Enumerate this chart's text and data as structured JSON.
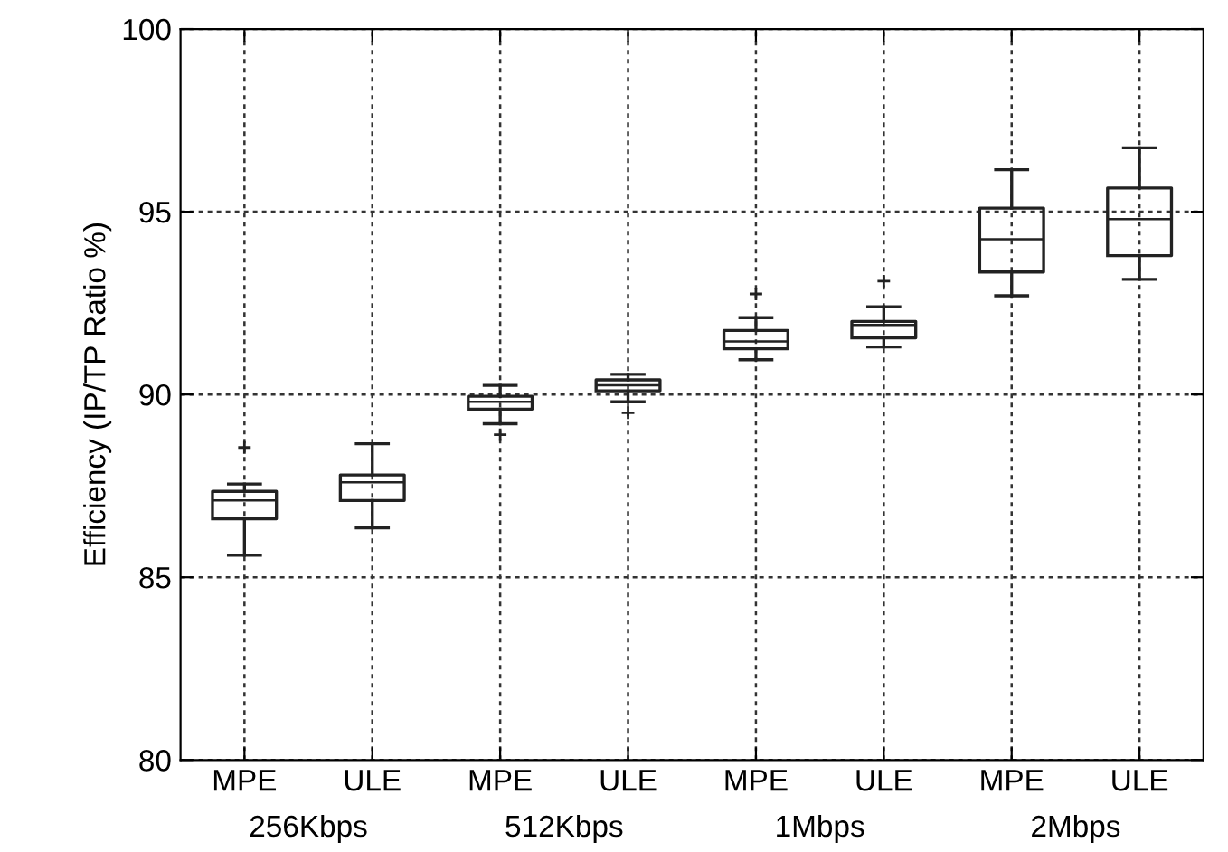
{
  "chart_data": {
    "type": "box",
    "ylabel": "Efficiency (IP/TP Ratio %)",
    "categories": [
      "MPE",
      "ULE",
      "MPE",
      "ULE",
      "MPE",
      "ULE",
      "MPE",
      "ULE"
    ],
    "boxes": [
      {
        "low": 85.6,
        "q1": 86.6,
        "median": 87.1,
        "q3": 87.35,
        "high": 87.55,
        "outliers": [
          88.55
        ]
      },
      {
        "low": 86.35,
        "q1": 87.1,
        "median": 87.6,
        "q3": 87.8,
        "high": 88.65
      },
      {
        "low": 89.2,
        "q1": 89.6,
        "median": 89.8,
        "q3": 89.95,
        "high": 90.25,
        "outliers": [
          88.9
        ]
      },
      {
        "low": 89.8,
        "q1": 90.1,
        "median": 90.25,
        "q3": 90.4,
        "high": 90.55,
        "outliers": [
          89.5
        ]
      },
      {
        "low": 90.95,
        "q1": 91.25,
        "median": 91.45,
        "q3": 91.75,
        "high": 92.1,
        "outliers": [
          92.75
        ]
      },
      {
        "low": 91.3,
        "q1": 91.55,
        "median": 91.9,
        "q3": 92.0,
        "high": 92.4,
        "outliers": [
          93.1
        ]
      },
      {
        "low": 92.7,
        "q1": 93.35,
        "median": 94.25,
        "q3": 95.1,
        "high": 96.15
      },
      {
        "low": 93.15,
        "q1": 93.8,
        "median": 94.8,
        "q3": 95.65,
        "high": 96.75
      }
    ],
    "annotations": [
      "256Kbps",
      "512Kbps",
      "1Mbps",
      "2Mbps"
    ],
    "ylim": [
      80,
      100
    ],
    "yticks": [
      80,
      85,
      90,
      95,
      100
    ],
    "grid": true,
    "color": "#222222"
  }
}
